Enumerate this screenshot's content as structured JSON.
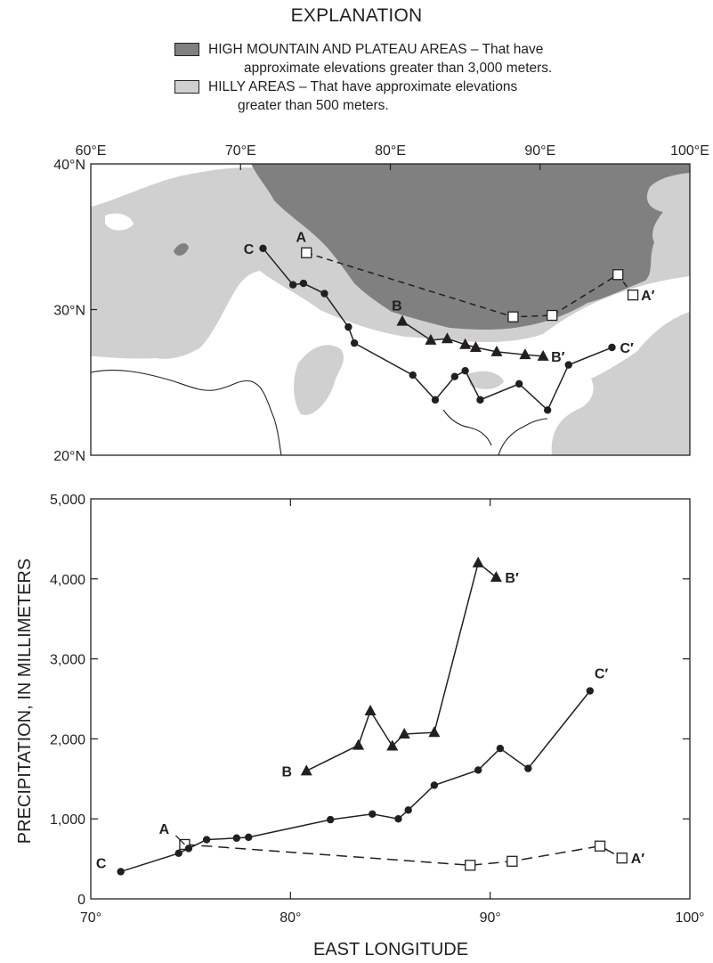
{
  "legend": {
    "title": "EXPLANATION",
    "items": [
      {
        "name": "HIGH MOUNTAIN AND PLATEAU AREAS",
        "line1": "HIGH MOUNTAIN AND PLATEAU AREAS – That have",
        "line2": "approximate elevations greater than 3,000 meters.",
        "color": "#808080"
      },
      {
        "name": "HILLY AREAS",
        "line1": "HILLY AREAS – That have approximate elevations",
        "line2": "greater than 500 meters.",
        "color": "#d0d0d0"
      }
    ]
  },
  "map": {
    "lon_ticks": [
      "60°E",
      "70°E",
      "80°E",
      "90°E",
      "100°E"
    ],
    "lat_ticks": [
      "40°N",
      "30°N",
      "20°N"
    ],
    "lon_range": [
      60,
      100
    ],
    "lat_range": [
      20,
      40
    ],
    "colors": {
      "mountain": "#808080",
      "hill": "#d0d0d0",
      "line": "#231f20"
    },
    "profiles": [
      {
        "label_start": "A",
        "label_end": "A′",
        "marker": "open-square",
        "dash": true,
        "points": [
          [
            74.4,
            33.9
          ],
          [
            88.2,
            29.5
          ],
          [
            90.8,
            29.6
          ],
          [
            95.2,
            32.4
          ],
          [
            96.2,
            31.0
          ]
        ]
      },
      {
        "label_start": "B",
        "label_end": "B′",
        "marker": "triangle",
        "dash": false,
        "points": [
          [
            80.8,
            29.2
          ],
          [
            82.7,
            27.9
          ],
          [
            83.8,
            28.0
          ],
          [
            85.0,
            27.6
          ],
          [
            85.7,
            27.4
          ],
          [
            87.1,
            27.1
          ],
          [
            89.0,
            26.9
          ],
          [
            90.2,
            26.8
          ]
        ]
      },
      {
        "label_start": "C",
        "label_end": "C′",
        "marker": "circle",
        "dash": false,
        "points": [
          [
            71.5,
            34.2
          ],
          [
            73.5,
            31.7
          ],
          [
            74.2,
            31.8
          ],
          [
            75.6,
            31.1
          ],
          [
            77.2,
            28.8
          ],
          [
            77.6,
            27.7
          ],
          [
            81.5,
            25.5
          ],
          [
            83.0,
            23.8
          ],
          [
            84.3,
            25.4
          ],
          [
            85.0,
            25.8
          ],
          [
            86.0,
            23.8
          ],
          [
            88.6,
            24.9
          ],
          [
            90.5,
            23.1
          ],
          [
            91.9,
            26.2
          ],
          [
            94.8,
            27.4
          ]
        ]
      }
    ]
  },
  "chart_data": {
    "type": "line",
    "title": "",
    "xlabel": "EAST LONGITUDE",
    "ylabel": "PRECIPITATION, IN MILLIMETERS",
    "xlim": [
      70,
      100
    ],
    "ylim": [
      0,
      5000
    ],
    "x_ticks": [
      "70°",
      "80°",
      "90°",
      "100°"
    ],
    "y_ticks": [
      "0",
      "1,000",
      "2,000",
      "3,000",
      "4,000",
      "5,000"
    ],
    "grid": false,
    "series": [
      {
        "label_start": "A",
        "label_end": "A′",
        "marker": "open-square",
        "dash": true,
        "x": [
          74.7,
          89.0,
          91.1,
          95.5,
          96.6
        ],
        "y": [
          680,
          420,
          470,
          660,
          510
        ]
      },
      {
        "label_start": "B",
        "label_end": "B′",
        "marker": "triangle",
        "dash": false,
        "x": [
          80.8,
          83.4,
          84.0,
          85.1,
          85.7,
          87.2,
          89.4,
          90.3
        ],
        "y": [
          1600,
          1920,
          2350,
          1910,
          2060,
          2080,
          4200,
          4020
        ]
      },
      {
        "label_start": "C",
        "label_end": "C′",
        "marker": "circle",
        "dash": false,
        "x": [
          71.5,
          74.4,
          74.9,
          75.8,
          77.3,
          77.9,
          82.0,
          84.1,
          85.4,
          85.9,
          87.2,
          89.4,
          90.5,
          91.9,
          95.0
        ],
        "y": [
          340,
          570,
          630,
          740,
          760,
          770,
          990,
          1060,
          1000,
          1110,
          1420,
          1610,
          1880,
          1630,
          2600
        ]
      }
    ]
  }
}
